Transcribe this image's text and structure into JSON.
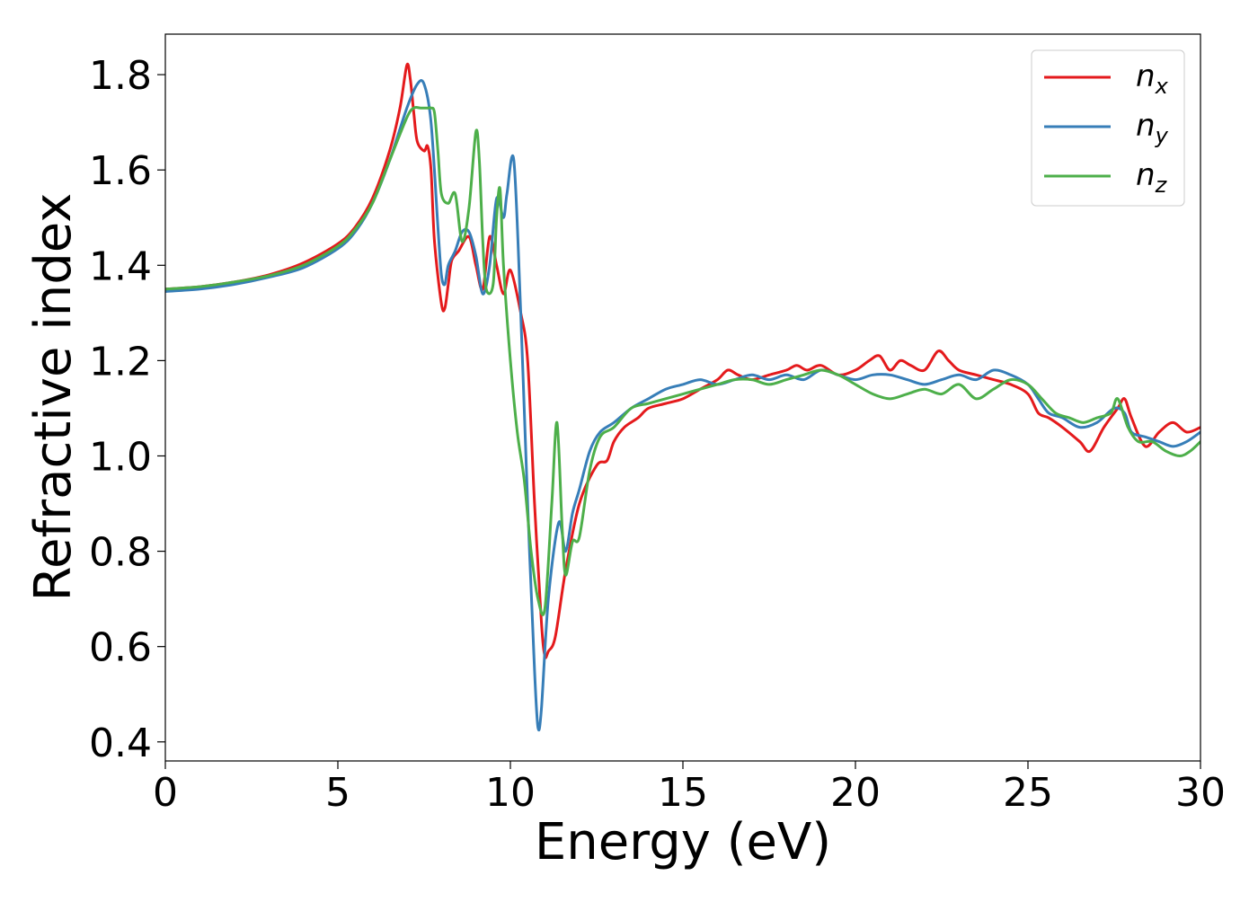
{
  "chart_data": {
    "type": "line",
    "title": "",
    "xlabel": "Energy (eV)",
    "ylabel": "Refractive index",
    "xlim": [
      0,
      30
    ],
    "ylim": [
      0.36,
      1.885
    ],
    "xticks": [
      0,
      5,
      10,
      15,
      20,
      25,
      30
    ],
    "xtick_labels": [
      "0",
      "5",
      "10",
      "15",
      "20",
      "25",
      "30"
    ],
    "yticks": [
      0.4,
      0.6,
      0.8,
      1.0,
      1.2,
      1.4,
      1.6,
      1.8
    ],
    "ytick_labels": [
      "0.4",
      "0.6",
      "0.8",
      "1.0",
      "1.2",
      "1.4",
      "1.6",
      "1.8"
    ],
    "grid": false,
    "legend_position": "top-right",
    "series": [
      {
        "name": "n_x",
        "label_base": "n",
        "label_sub": "x",
        "color": "#e41a1c",
        "x": [
          0,
          1,
          2,
          3,
          4,
          5,
          5.5,
          6,
          6.5,
          6.8,
          7.0,
          7.1,
          7.2,
          7.3,
          7.5,
          7.6,
          7.7,
          7.8,
          8.0,
          8.1,
          8.2,
          8.3,
          8.5,
          8.8,
          9.0,
          9.2,
          9.4,
          9.6,
          9.8,
          10.0,
          10.3,
          10.5,
          10.7,
          10.9,
          11.0,
          11.1,
          11.3,
          11.6,
          12.0,
          12.5,
          12.8,
          13.0,
          13.3,
          13.7,
          14.0,
          14.5,
          15.0,
          15.5,
          16.0,
          16.3,
          16.6,
          17.0,
          17.5,
          18.0,
          18.3,
          18.6,
          19.0,
          19.5,
          20.0,
          20.4,
          20.7,
          21.0,
          21.3,
          21.6,
          22.0,
          22.4,
          22.7,
          23.0,
          23.5,
          24.0,
          24.5,
          25.0,
          25.3,
          25.6,
          26.0,
          26.5,
          26.8,
          27.2,
          27.6,
          27.8,
          28.0,
          28.4,
          28.8,
          29.2,
          29.6,
          30.0
        ],
        "y": [
          1.35,
          1.355,
          1.365,
          1.38,
          1.405,
          1.445,
          1.48,
          1.54,
          1.64,
          1.73,
          1.82,
          1.79,
          1.72,
          1.66,
          1.64,
          1.65,
          1.6,
          1.45,
          1.32,
          1.31,
          1.36,
          1.41,
          1.43,
          1.46,
          1.4,
          1.35,
          1.46,
          1.4,
          1.34,
          1.39,
          1.3,
          1.2,
          0.9,
          0.65,
          0.58,
          0.59,
          0.62,
          0.76,
          0.9,
          0.98,
          0.99,
          1.03,
          1.06,
          1.08,
          1.1,
          1.11,
          1.12,
          1.14,
          1.16,
          1.18,
          1.17,
          1.16,
          1.17,
          1.18,
          1.19,
          1.18,
          1.19,
          1.17,
          1.18,
          1.2,
          1.21,
          1.18,
          1.2,
          1.19,
          1.18,
          1.22,
          1.2,
          1.18,
          1.17,
          1.16,
          1.15,
          1.13,
          1.09,
          1.08,
          1.06,
          1.03,
          1.01,
          1.06,
          1.1,
          1.12,
          1.08,
          1.02,
          1.05,
          1.07,
          1.05,
          1.06
        ]
      },
      {
        "name": "n_y",
        "label_base": "n",
        "label_sub": "y",
        "color": "#377eb8",
        "x": [
          0,
          1,
          2,
          3,
          4,
          5,
          5.5,
          6,
          6.5,
          7.0,
          7.3,
          7.5,
          7.7,
          7.9,
          8.0,
          8.1,
          8.2,
          8.4,
          8.6,
          8.8,
          9.0,
          9.2,
          9.4,
          9.6,
          9.8,
          9.9,
          10.1,
          10.3,
          10.5,
          10.7,
          10.8,
          10.9,
          11.1,
          11.4,
          11.6,
          11.8,
          12.0,
          12.3,
          12.6,
          13.0,
          13.5,
          14.0,
          14.5,
          15.0,
          15.5,
          16.0,
          16.5,
          17.0,
          17.5,
          18.0,
          18.5,
          19.0,
          19.5,
          20.0,
          20.5,
          21.0,
          21.5,
          22.0,
          22.5,
          23.0,
          23.5,
          24.0,
          24.5,
          25.0,
          25.3,
          25.6,
          26.0,
          26.5,
          27.0,
          27.5,
          27.8,
          28.0,
          28.4,
          28.8,
          29.2,
          29.6,
          30.0
        ],
        "y": [
          1.345,
          1.35,
          1.36,
          1.375,
          1.395,
          1.435,
          1.47,
          1.53,
          1.62,
          1.73,
          1.78,
          1.78,
          1.7,
          1.48,
          1.38,
          1.36,
          1.4,
          1.43,
          1.47,
          1.47,
          1.42,
          1.34,
          1.4,
          1.54,
          1.5,
          1.55,
          1.62,
          1.3,
          0.9,
          0.55,
          0.43,
          0.47,
          0.7,
          0.86,
          0.8,
          0.88,
          0.93,
          1.01,
          1.05,
          1.07,
          1.1,
          1.12,
          1.14,
          1.15,
          1.16,
          1.15,
          1.16,
          1.17,
          1.16,
          1.17,
          1.16,
          1.18,
          1.17,
          1.16,
          1.17,
          1.17,
          1.16,
          1.15,
          1.16,
          1.17,
          1.16,
          1.18,
          1.17,
          1.15,
          1.12,
          1.09,
          1.08,
          1.06,
          1.07,
          1.1,
          1.09,
          1.05,
          1.04,
          1.03,
          1.02,
          1.03,
          1.05
        ]
      },
      {
        "name": "n_z",
        "label_base": "n",
        "label_sub": "z",
        "color": "#4daf4a",
        "x": [
          0,
          1,
          2,
          3,
          4,
          5,
          5.5,
          6,
          6.5,
          7.0,
          7.2,
          7.4,
          7.6,
          7.7,
          7.8,
          7.9,
          8.0,
          8.2,
          8.4,
          8.6,
          8.8,
          9.0,
          9.1,
          9.2,
          9.3,
          9.5,
          9.6,
          9.7,
          9.8,
          10.0,
          10.2,
          10.4,
          10.6,
          10.8,
          11.0,
          11.2,
          11.35,
          11.5,
          11.6,
          11.8,
          12.0,
          12.3,
          12.6,
          13.0,
          13.5,
          14.0,
          14.5,
          15.0,
          15.5,
          16.0,
          16.5,
          17.0,
          17.5,
          18.0,
          18.5,
          19.0,
          19.5,
          20.0,
          20.5,
          21.0,
          21.5,
          22.0,
          22.5,
          23.0,
          23.5,
          24.0,
          24.5,
          25.0,
          25.4,
          25.8,
          26.2,
          26.6,
          27.0,
          27.4,
          27.6,
          27.9,
          28.2,
          28.6,
          29.0,
          29.4,
          29.7,
          30.0
        ],
        "y": [
          1.35,
          1.355,
          1.365,
          1.378,
          1.4,
          1.44,
          1.475,
          1.53,
          1.62,
          1.71,
          1.73,
          1.73,
          1.73,
          1.73,
          1.72,
          1.64,
          1.55,
          1.53,
          1.55,
          1.45,
          1.52,
          1.68,
          1.62,
          1.45,
          1.35,
          1.36,
          1.5,
          1.56,
          1.4,
          1.2,
          1.05,
          0.95,
          0.8,
          0.7,
          0.68,
          0.9,
          1.07,
          0.85,
          0.75,
          0.82,
          0.83,
          0.97,
          1.04,
          1.06,
          1.1,
          1.11,
          1.12,
          1.13,
          1.14,
          1.15,
          1.16,
          1.16,
          1.15,
          1.16,
          1.17,
          1.18,
          1.17,
          1.15,
          1.13,
          1.12,
          1.13,
          1.14,
          1.13,
          1.15,
          1.12,
          1.14,
          1.16,
          1.15,
          1.12,
          1.09,
          1.08,
          1.07,
          1.08,
          1.09,
          1.12,
          1.06,
          1.03,
          1.03,
          1.01,
          1.0,
          1.01,
          1.03
        ]
      }
    ]
  }
}
